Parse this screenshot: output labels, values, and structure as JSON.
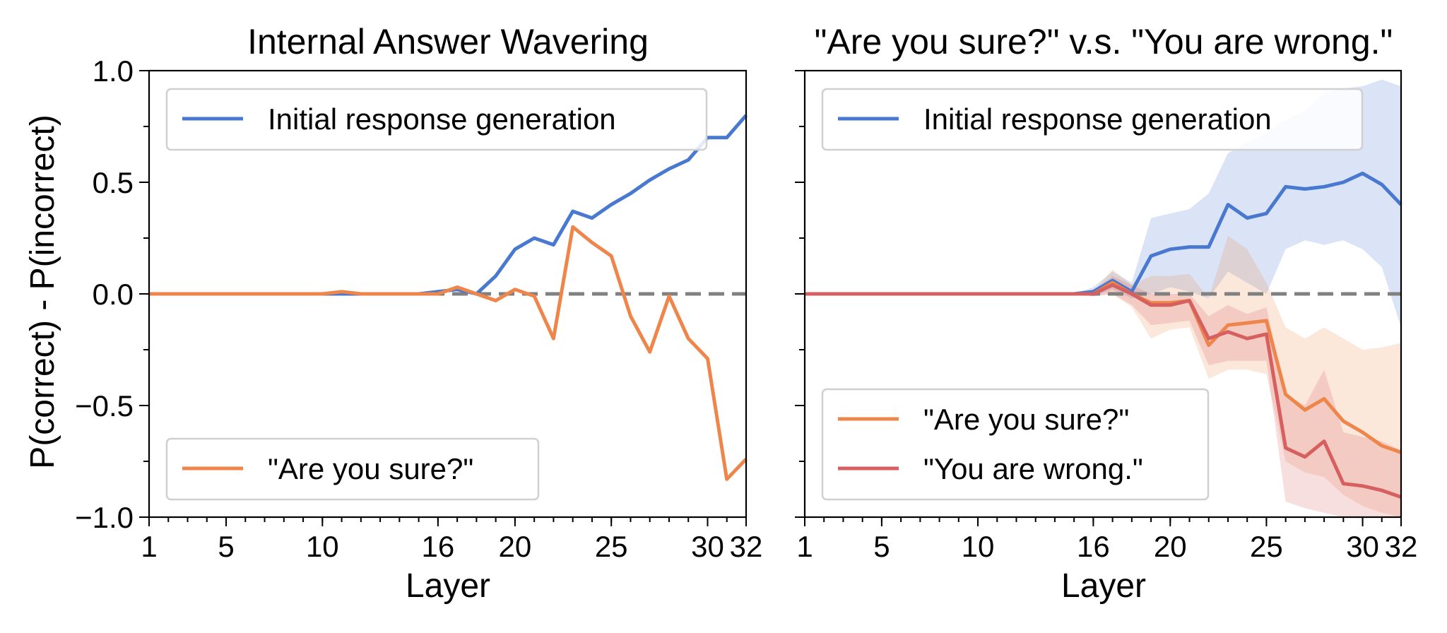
{
  "chart_data": [
    {
      "type": "line",
      "title": "Internal Answer Wavering",
      "xlabel": "Layer",
      "ylabel": "P(correct) - P(incorrect)",
      "xlim": [
        1,
        32
      ],
      "ylim": [
        -1.0,
        1.0
      ],
      "xticks": [
        1,
        5,
        10,
        16,
        20,
        25,
        30,
        32
      ],
      "yticks": [
        1.0,
        0.5,
        0.0,
        -0.5,
        -1.0
      ],
      "ytick_labels": [
        "1.0",
        "0.5",
        "0.0",
        "−0.5",
        "−1.0"
      ],
      "reference_line": {
        "y": 0.0,
        "style": "dashed",
        "color": "#808080"
      },
      "x": [
        1,
        2,
        3,
        4,
        5,
        6,
        7,
        8,
        9,
        10,
        11,
        12,
        13,
        14,
        15,
        16,
        17,
        18,
        19,
        20,
        21,
        22,
        23,
        24,
        25,
        26,
        27,
        28,
        29,
        30,
        31,
        32
      ],
      "series": [
        {
          "name": "Initial response generation",
          "color": "#4878D0",
          "values": [
            0,
            0,
            0,
            0,
            0,
            0,
            0,
            0,
            0,
            0,
            0,
            0,
            0,
            0,
            0,
            0.01,
            0.02,
            0.0,
            0.08,
            0.2,
            0.25,
            0.22,
            0.37,
            0.34,
            0.4,
            0.45,
            0.51,
            0.56,
            0.6,
            0.7,
            0.7,
            0.8
          ]
        },
        {
          "name": "\"Are you sure?\"",
          "color": "#EE854A",
          "values": [
            0,
            0,
            0,
            0,
            0,
            0,
            0,
            0,
            0,
            0,
            0.01,
            0,
            0,
            0,
            0,
            0,
            0.03,
            0,
            -0.03,
            0.02,
            -0.01,
            -0.2,
            0.3,
            0.23,
            0.17,
            -0.1,
            -0.26,
            -0.01,
            -0.2,
            -0.29,
            -0.83,
            -0.74
          ]
        }
      ],
      "legends": [
        {
          "position": "upper-left",
          "entries": [
            "Initial response generation"
          ]
        },
        {
          "position": "lower-left",
          "entries": [
            "\"Are you sure?\""
          ]
        }
      ]
    },
    {
      "type": "line",
      "title": "\"Are you sure?\" v.s. \"You are wrong.\"",
      "xlabel": "Layer",
      "ylabel": "",
      "xlim": [
        1,
        32
      ],
      "ylim": [
        -1.0,
        1.0
      ],
      "xticks": [
        1,
        5,
        10,
        16,
        20,
        25,
        30,
        32
      ],
      "reference_line": {
        "y": 0.0,
        "style": "dashed",
        "color": "#808080"
      },
      "x": [
        1,
        2,
        3,
        4,
        5,
        6,
        7,
        8,
        9,
        10,
        11,
        12,
        13,
        14,
        15,
        16,
        17,
        18,
        19,
        20,
        21,
        22,
        23,
        24,
        25,
        26,
        27,
        28,
        29,
        30,
        31,
        32
      ],
      "series": [
        {
          "name": "Initial response generation",
          "color": "#4878D0",
          "values": [
            0,
            0,
            0,
            0,
            0,
            0,
            0,
            0,
            0,
            0,
            0,
            0,
            0,
            0,
            0,
            0.01,
            0.06,
            0.01,
            0.17,
            0.2,
            0.21,
            0.21,
            0.4,
            0.34,
            0.36,
            0.48,
            0.47,
            0.48,
            0.5,
            0.54,
            0.49,
            0.4
          ],
          "band_lower": [
            0,
            0,
            0,
            0,
            0,
            0,
            0,
            0,
            0,
            0,
            0,
            0,
            0,
            0,
            0,
            -0.01,
            0.02,
            -0.02,
            0.0,
            0.03,
            0.01,
            -0.02,
            0.1,
            0.05,
            0.0,
            0.2,
            0.24,
            0.22,
            0.24,
            0.2,
            0.12,
            -0.15
          ],
          "band_upper": [
            0,
            0,
            0,
            0,
            0,
            0,
            0,
            0,
            0,
            0,
            0,
            0,
            0,
            0,
            0,
            0.03,
            0.1,
            0.05,
            0.34,
            0.36,
            0.38,
            0.45,
            0.63,
            0.68,
            0.72,
            0.78,
            0.82,
            0.9,
            0.92,
            0.93,
            0.96,
            0.93
          ]
        },
        {
          "name": "\"Are you sure?\"",
          "color": "#EE854A",
          "values": [
            0,
            0,
            0,
            0,
            0,
            0,
            0,
            0,
            0,
            0,
            0,
            0,
            0,
            0,
            0,
            0,
            0.05,
            0,
            -0.04,
            -0.04,
            -0.03,
            -0.23,
            -0.14,
            -0.13,
            -0.12,
            -0.45,
            -0.52,
            -0.47,
            -0.57,
            -0.62,
            -0.68,
            -0.71
          ],
          "band_lower": [
            0,
            0,
            0,
            0,
            0,
            0,
            0,
            0,
            0,
            0,
            0,
            0,
            0,
            0,
            0,
            -0.01,
            0.0,
            -0.06,
            -0.2,
            -0.16,
            -0.15,
            -0.38,
            -0.34,
            -0.34,
            -0.36,
            -0.75,
            -0.8,
            -0.82,
            -0.9,
            -0.95,
            -0.98,
            -1.0
          ],
          "band_upper": [
            0,
            0,
            0,
            0,
            0,
            0,
            0,
            0,
            0,
            0,
            0,
            0,
            0,
            0,
            0,
            0.01,
            0.11,
            0.04,
            0.08,
            0.08,
            0.09,
            -0.02,
            0.26,
            0.2,
            0.05,
            -0.15,
            -0.2,
            -0.15,
            -0.2,
            -0.25,
            -0.24,
            -0.22
          ]
        },
        {
          "name": "\"You are wrong.\"",
          "color": "#D65F5F",
          "values": [
            0,
            0,
            0,
            0,
            0,
            0,
            0,
            0,
            0,
            0,
            0,
            0,
            0,
            0,
            0,
            0,
            0.04,
            0,
            -0.05,
            -0.05,
            -0.03,
            -0.2,
            -0.17,
            -0.2,
            -0.18,
            -0.69,
            -0.73,
            -0.66,
            -0.85,
            -0.86,
            -0.88,
            -0.91
          ],
          "band_lower": [
            0,
            0,
            0,
            0,
            0,
            0,
            0,
            0,
            0,
            0,
            0,
            0,
            0,
            0,
            0,
            -0.01,
            0.0,
            -0.05,
            -0.14,
            -0.13,
            -0.12,
            -0.32,
            -0.3,
            -0.3,
            -0.3,
            -0.93,
            -0.96,
            -0.98,
            -1.0,
            -1.0,
            -1.0,
            -1.0
          ],
          "band_upper": [
            0,
            0,
            0,
            0,
            0,
            0,
            0,
            0,
            0,
            0,
            0,
            0,
            0,
            0,
            0,
            0.01,
            0.08,
            0.04,
            0.0,
            0.0,
            0.0,
            -0.1,
            -0.05,
            -0.09,
            -0.06,
            -0.45,
            -0.5,
            -0.34,
            -0.62,
            -0.64,
            -0.66,
            -0.7
          ]
        }
      ],
      "legends": [
        {
          "position": "upper-left",
          "entries": [
            "Initial response generation"
          ]
        },
        {
          "position": "lower-left",
          "entries": [
            "\"Are you sure?\"",
            "\"You are wrong.\""
          ]
        }
      ]
    }
  ]
}
